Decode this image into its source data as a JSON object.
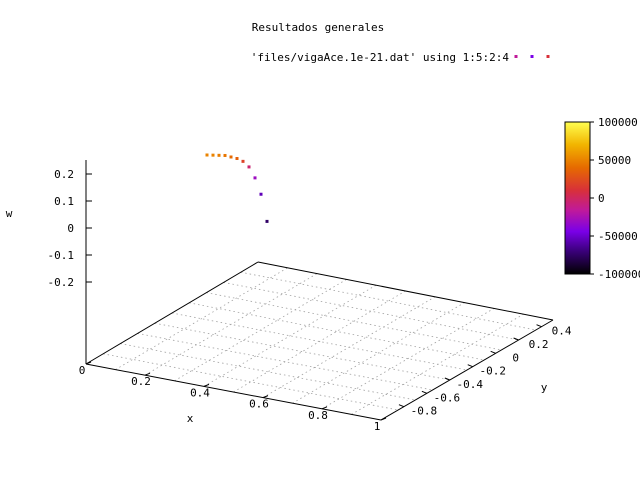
{
  "chart_data": {
    "type": "scatter",
    "title": "Resultados generales",
    "series": [
      {
        "name": "'files/vigaAce.1e-21.dat' using 1:5:2:4",
        "points": [
          {
            "x": 0.0,
            "y": 0.0,
            "z": 0.26,
            "c": 50000
          },
          {
            "x": 0.04,
            "y": 0.0,
            "z": 0.26,
            "c": 50000
          },
          {
            "x": 0.08,
            "y": 0.0,
            "z": 0.26,
            "c": 48000
          },
          {
            "x": 0.12,
            "y": 0.0,
            "z": 0.26,
            "c": 45000
          },
          {
            "x": 0.16,
            "y": 0.0,
            "z": 0.255,
            "c": 40000
          },
          {
            "x": 0.2,
            "y": 0.0,
            "z": 0.25,
            "c": 35000
          },
          {
            "x": 0.24,
            "y": 0.0,
            "z": 0.24,
            "c": 20000
          },
          {
            "x": 0.28,
            "y": 0.0,
            "z": 0.22,
            "c": -5000
          },
          {
            "x": 0.32,
            "y": 0.0,
            "z": 0.18,
            "c": -30000
          },
          {
            "x": 0.36,
            "y": 0.0,
            "z": 0.12,
            "c": -55000
          },
          {
            "x": 0.4,
            "y": 0.0,
            "z": 0.02,
            "c": -75000
          }
        ]
      }
    ],
    "xlabel": "x",
    "ylabel": "y",
    "zlabel": "w",
    "xticks": [
      "0",
      "0.2",
      "0.4",
      "0.6",
      "0.8",
      "1"
    ],
    "yticks": [
      "-0.8",
      "-0.6",
      "-0.4",
      "-0.2",
      "0",
      "0.2",
      "0.4"
    ],
    "zticks": [
      "0.2",
      "0.1",
      "0",
      "-0.1",
      "-0.2"
    ],
    "colorbar_ticks": [
      "100000",
      "50000",
      "0",
      "-50000",
      "-100000"
    ],
    "xlim": [
      0,
      1
    ],
    "ylim": [
      -1,
      0.5
    ],
    "zlim": [
      -0.3,
      0.3
    ],
    "clim": [
      -100000,
      100000
    ],
    "grid": true,
    "legend_position": "top-right"
  }
}
